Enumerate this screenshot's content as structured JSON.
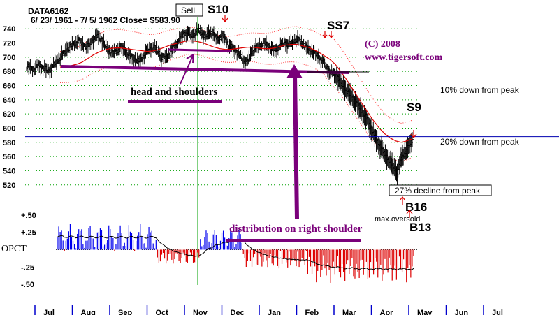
{
  "chart_data": {
    "type": "line",
    "title": "DATA6162",
    "subtitle": "6/ 23/ 1961  -  7/ 5/ 1962     Close=  $583.90",
    "copyright": "(C) 2008",
    "website": "www.tigersoft.com",
    "ylim": [
      505,
      752
    ],
    "yticks": [
      520,
      540,
      560,
      580,
      600,
      620,
      640,
      660,
      680,
      700,
      720,
      740
    ],
    "months": [
      "Jul",
      "Aug",
      "Sep",
      "Oct",
      "Nov",
      "Dec",
      "Jan",
      "Feb",
      "Mar",
      "Apr",
      "May",
      "Jun",
      "Jul"
    ],
    "close_path": [
      687,
      684,
      682,
      690,
      686,
      683,
      680,
      688,
      694,
      700,
      706,
      712,
      716,
      720,
      722,
      718,
      714,
      720,
      726,
      730,
      725,
      716,
      710,
      705,
      708,
      714,
      712,
      706,
      700,
      696,
      694,
      700,
      706,
      712,
      714,
      708,
      700,
      698,
      704,
      712,
      720,
      726,
      733,
      734,
      730,
      735,
      738,
      732,
      730,
      736,
      730,
      726,
      730,
      728,
      716,
      712,
      708,
      702,
      696,
      692,
      706,
      712,
      716,
      720,
      718,
      714,
      710,
      712,
      716,
      720,
      718,
      722,
      726,
      722,
      718,
      712,
      710,
      704,
      700,
      694,
      686,
      680,
      676,
      672,
      664,
      656,
      648,
      642,
      636,
      628,
      620,
      610,
      598,
      588,
      578,
      568,
      560,
      552,
      545,
      538,
      556,
      566,
      576,
      584
    ],
    "ma_path": [
      686,
      687,
      688,
      690,
      693,
      698,
      703,
      707,
      710,
      712,
      713,
      713,
      712,
      711,
      710,
      709,
      708,
      709,
      711,
      714,
      717,
      719,
      721,
      723,
      723,
      722,
      720,
      717,
      714,
      712,
      711,
      711,
      712,
      713,
      714,
      714,
      713,
      712,
      712,
      713,
      715,
      717,
      718,
      718,
      716,
      714,
      711,
      707,
      702,
      697,
      690,
      680,
      669,
      657,
      645,
      633,
      621,
      610,
      600,
      592,
      586,
      582,
      580,
      582,
      585
    ],
    "ma_path_start": 0.4,
    "annotations": {
      "sell": "Sell",
      "s10": "S10",
      "ss7": "SS7",
      "s9": "S9",
      "b16": "B16",
      "b13": "B13",
      "head_shoulders": "head and shoulders",
      "distribution": "distribution on right shoulder",
      "ten_pct": "10% down from peak",
      "twenty_pct": "20% down from peak",
      "decline_27": "27% decline from peak",
      "max_oversold": "max.oversold"
    },
    "ten_pct_level": 661,
    "twenty_pct_level": 588,
    "opct": {
      "label": "OPCT",
      "yticks": [
        "+.50",
        "+.25",
        "-.25",
        "-.50"
      ],
      "ytick_values": [
        0.5,
        0.25,
        -0.25,
        -0.5
      ],
      "ylim": [
        -0.55,
        0.6
      ]
    },
    "colors": {
      "price": "#000000",
      "ma": "#dd0000",
      "band": "#ff3030",
      "level_line": "#0000b0",
      "green": "#00a000",
      "annotation": "#7a007a",
      "opct_pos": "#0000ee",
      "opct_neg": "#dd0000"
    }
  }
}
